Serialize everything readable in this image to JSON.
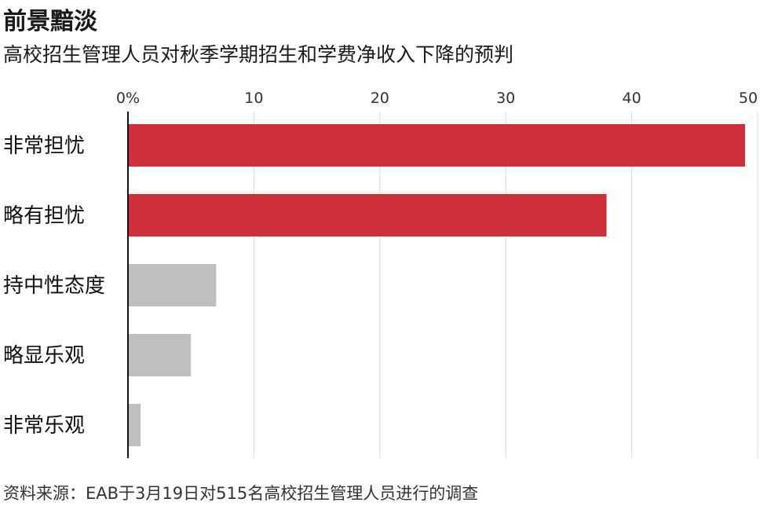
{
  "title": "前景黯淡",
  "subtitle": "高校招生管理人员对秋季学期招生和学费净收入下降的预判",
  "source": "资料来源：EAB于3月19日对515名高校招生管理人员进行的调查",
  "colors": {
    "highlight": "#cf2e3b",
    "muted": "#bfbfbf",
    "grid": "#dcdcdc",
    "axis": "#111111"
  },
  "chart_data": {
    "type": "bar",
    "orientation": "horizontal",
    "categories": [
      "非常担忧",
      "略有担忧",
      "持中性态度",
      "略显乐观",
      "非常乐观"
    ],
    "values": [
      49,
      38,
      7,
      5,
      1
    ],
    "highlight": [
      true,
      true,
      false,
      false,
      false
    ],
    "xlim": [
      0,
      50
    ],
    "xticks": [
      0,
      10,
      20,
      30,
      40,
      50
    ],
    "xtick_labels": [
      "0%",
      "10",
      "20",
      "30",
      "40",
      "50"
    ],
    "grid": true,
    "axis_position": "top"
  }
}
